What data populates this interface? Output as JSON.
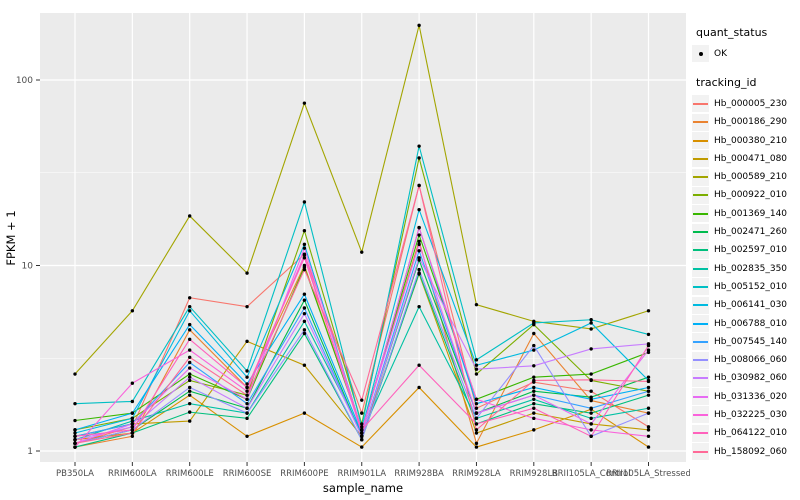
{
  "chart_data": {
    "type": "line",
    "title": "",
    "xlabel": "sample_name",
    "ylabel": "FPKM + 1",
    "y_scale": "log10",
    "y_ticks": [
      1,
      10,
      100
    ],
    "y_minor_ticks": [
      3.162,
      31.62
    ],
    "ylim": [
      0.88,
      230
    ],
    "grid": true,
    "legend_position": "right",
    "point_color": "#000000",
    "panel_bg": "#EBEBEB",
    "grid_color": "#FFFFFF",
    "categories": [
      "PB350LA",
      "RRIM600LA",
      "RRIM600LE",
      "RRIM600SE",
      "RRIM600PE",
      "RRIM901LA",
      "RRIM928BA",
      "RRIM928LA",
      "RRIM928LB",
      "RRII105LA_Control",
      "RRII105LA_Stressed"
    ],
    "series": [
      {
        "name": "Hb_000005_230",
        "color": "#F8766D",
        "values": [
          1.1,
          1.35,
          6.7,
          6.0,
          11.5,
          1.6,
          27,
          1.7,
          2.35,
          2.1,
          1.35
        ]
      },
      {
        "name": "Hb_000186_290",
        "color": "#EA8331",
        "values": [
          1.05,
          1.2,
          4.5,
          2.2,
          10.0,
          1.3,
          13.5,
          1.1,
          4.3,
          1.87,
          1.6
        ]
      },
      {
        "name": "Hb_000380_210",
        "color": "#D89000",
        "values": [
          1.15,
          1.25,
          2.0,
          1.2,
          1.6,
          1.05,
          2.2,
          1.05,
          1.3,
          1.68,
          1.05
        ]
      },
      {
        "name": "Hb_000471_080",
        "color": "#C09B00",
        "values": [
          1.2,
          1.4,
          1.45,
          3.9,
          2.9,
          1.2,
          9.0,
          1.25,
          1.6,
          1.4,
          1.3
        ]
      },
      {
        "name": "Hb_000589_210",
        "color": "#A3A500",
        "values": [
          2.6,
          5.7,
          18.5,
          9.1,
          75.0,
          11.8,
          197,
          6.15,
          5.0,
          4.55,
          5.7
        ]
      },
      {
        "name": "Hb_000922_010",
        "color": "#7CAE00",
        "values": [
          1.3,
          1.5,
          2.4,
          2.0,
          15.4,
          1.4,
          38,
          2.6,
          4.8,
          2.4,
          2.1
        ]
      },
      {
        "name": "Hb_001369_140",
        "color": "#39B600",
        "values": [
          1.46,
          1.6,
          2.6,
          1.9,
          9.8,
          1.3,
          14.6,
          1.9,
          2.5,
          2.6,
          3.4
        ]
      },
      {
        "name": "Hb_002471_260",
        "color": "#00BB4E",
        "values": [
          1.1,
          1.3,
          2.1,
          1.7,
          6.5,
          1.2,
          10.7,
          1.6,
          2.1,
          1.95,
          2.5
        ]
      },
      {
        "name": "Hb_002597_010",
        "color": "#00BF7D",
        "values": [
          1.05,
          1.25,
          1.62,
          1.5,
          4.3,
          1.15,
          9.1,
          1.4,
          1.8,
          1.6,
          2.0
        ]
      },
      {
        "name": "Hb_002835_350",
        "color": "#00C1A3",
        "values": [
          1.15,
          1.45,
          1.8,
          1.6,
          5.0,
          1.25,
          6.0,
          1.5,
          1.9,
          1.5,
          1.7
        ]
      },
      {
        "name": "Hb_005152_010",
        "color": "#00BFC4",
        "values": [
          1.8,
          1.85,
          6.0,
          2.7,
          22.0,
          1.35,
          44,
          3.1,
          4.9,
          5.1,
          4.25
        ]
      },
      {
        "name": "Hb_006141_030",
        "color": "#00BAE0",
        "values": [
          1.25,
          1.5,
          5.7,
          2.5,
          13.0,
          1.3,
          20,
          2.9,
          3.5,
          4.9,
          2.4
        ]
      },
      {
        "name": "Hb_006788_010",
        "color": "#00B0F6",
        "values": [
          1.3,
          1.6,
          4.8,
          2.3,
          7.0,
          1.25,
          16,
          1.8,
          2.2,
          1.9,
          2.2
        ]
      },
      {
        "name": "Hb_007545_140",
        "color": "#35A2FF",
        "values": [
          1.2,
          1.4,
          3.0,
          1.8,
          5.9,
          1.2,
          12,
          1.6,
          2.0,
          1.7,
          2.1
        ]
      },
      {
        "name": "Hb_008066_060",
        "color": "#9590FF",
        "values": [
          1.1,
          1.3,
          2.2,
          1.6,
          4.5,
          1.15,
          9.5,
          1.5,
          3.7,
          1.2,
          1.6
        ]
      },
      {
        "name": "Hb_030982_060",
        "color": "#C77CFF",
        "values": [
          1.15,
          1.35,
          2.5,
          1.7,
          5.5,
          1.2,
          11,
          2.76,
          2.88,
          3.55,
          3.78
        ]
      },
      {
        "name": "Hb_031336_020",
        "color": "#E76BF3",
        "values": [
          1.1,
          1.4,
          2.8,
          1.9,
          12.4,
          1.3,
          13,
          1.6,
          2.0,
          1.4,
          3.5
        ]
      },
      {
        "name": "Hb_032225_030",
        "color": "#FA62DB",
        "values": [
          1.05,
          2.32,
          3.5,
          2.1,
          11.4,
          1.25,
          16,
          1.9,
          1.5,
          1.3,
          1.2
        ]
      },
      {
        "name": "Hb_064122_010",
        "color": "#FF62BC",
        "values": [
          1.2,
          1.3,
          4.0,
          2.2,
          11.0,
          1.3,
          2.9,
          1.4,
          1.7,
          1.2,
          3.7
        ]
      },
      {
        "name": "Hb_158092_060",
        "color": "#FF6A98",
        "values": [
          1.1,
          1.25,
          3.2,
          2.0,
          9.5,
          1.88,
          27,
          1.3,
          2.4,
          2.42,
          2.37
        ]
      }
    ]
  },
  "legend": {
    "quant_status_title": "quant_status",
    "ok_label": "OK",
    "tracking_id_title": "tracking_id"
  }
}
